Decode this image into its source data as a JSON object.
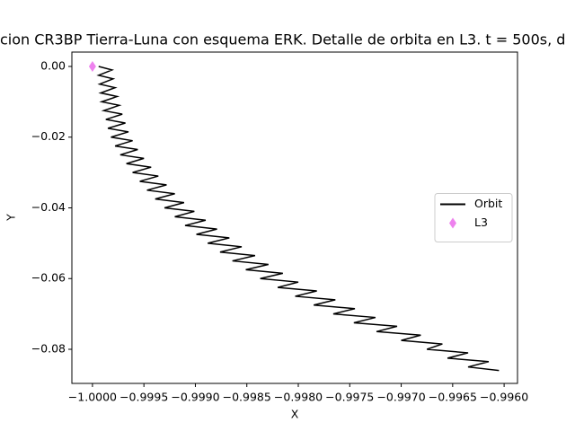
{
  "chart_data": {
    "type": "line",
    "title": "cion CR3BP Tierra-Luna con esquema ERK. Detalle de orbita en L3. t = 500s, d",
    "x_label": "X",
    "y_label": "Y",
    "xlim": [
      -1.0002,
      -0.99587
    ],
    "ylim": [
      -0.08965,
      0.00406
    ],
    "xticks": [
      {
        "value": -1.0,
        "label": "−1.0000"
      },
      {
        "value": -0.9995,
        "label": "−0.9995"
      },
      {
        "value": -0.999,
        "label": "−0.9990"
      },
      {
        "value": -0.9985,
        "label": "−0.9985"
      },
      {
        "value": -0.998,
        "label": "−0.9980"
      },
      {
        "value": -0.9975,
        "label": "−0.9975"
      },
      {
        "value": -0.997,
        "label": "−0.9970"
      },
      {
        "value": -0.9965,
        "label": "−0.9965"
      },
      {
        "value": -0.996,
        "label": "−0.9960"
      }
    ],
    "yticks": [
      {
        "value": 0.0,
        "label": "0.00"
      },
      {
        "value": -0.02,
        "label": "−0.02"
      },
      {
        "value": -0.04,
        "label": "−0.04"
      },
      {
        "value": -0.06,
        "label": "−0.06"
      },
      {
        "value": -0.08,
        "label": "−0.08"
      }
    ],
    "legend": "center right",
    "series": [
      {
        "name": "Orbit",
        "color": "#000000",
        "marker": "none",
        "x": [
          -0.99994,
          -0.99981,
          -0.99994,
          -0.9998,
          -0.99993,
          -0.99978,
          -0.99992,
          -0.99976,
          -0.99991,
          -0.99974,
          -0.99989,
          -0.99971,
          -0.99987,
          -0.99968,
          -0.99985,
          -0.99965,
          -0.99982,
          -0.99961,
          -0.99978,
          -0.99956,
          -0.99973,
          -0.9995,
          -0.99967,
          -0.99943,
          -0.99961,
          -0.99936,
          -0.99954,
          -0.99928,
          -0.99947,
          -0.9992,
          -0.99939,
          -0.99911,
          -0.9993,
          -0.99901,
          -0.9992,
          -0.9989,
          -0.9991,
          -0.99879,
          -0.99899,
          -0.99867,
          -0.99888,
          -0.99855,
          -0.99876,
          -0.99842,
          -0.99864,
          -0.99829,
          -0.99851,
          -0.99815,
          -0.99837,
          -0.998,
          -0.9982,
          -0.99782,
          -0.99803,
          -0.99764,
          -0.99785,
          -0.99745,
          -0.99766,
          -0.99725,
          -0.99746,
          -0.99704,
          -0.99724,
          -0.99681,
          -0.997,
          -0.9966,
          -0.99675,
          -0.99635,
          -0.99655,
          -0.99615,
          -0.99635,
          -0.99605
        ],
        "values": [
          0,
          -0.001,
          -0.0025,
          -0.0035,
          -0.005,
          -0.006,
          -0.0075,
          -0.0085,
          -0.01,
          -0.011,
          -0.0125,
          -0.0135,
          -0.015,
          -0.016,
          -0.0175,
          -0.0185,
          -0.02,
          -0.021,
          -0.0225,
          -0.0235,
          -0.025,
          -0.026,
          -0.0275,
          -0.0285,
          -0.03,
          -0.031,
          -0.0325,
          -0.0335,
          -0.035,
          -0.036,
          -0.0375,
          -0.0385,
          -0.04,
          -0.041,
          -0.0425,
          -0.0435,
          -0.045,
          -0.046,
          -0.0475,
          -0.0485,
          -0.05,
          -0.051,
          -0.0525,
          -0.0535,
          -0.055,
          -0.056,
          -0.0575,
          -0.0585,
          -0.06,
          -0.061,
          -0.0625,
          -0.0635,
          -0.065,
          -0.066,
          -0.0675,
          -0.0685,
          -0.07,
          -0.071,
          -0.0725,
          -0.0735,
          -0.075,
          -0.076,
          -0.0775,
          -0.0785,
          -0.08,
          -0.081,
          -0.0825,
          -0.0835,
          -0.085,
          -0.086
        ]
      },
      {
        "name": "L3",
        "color": "violet",
        "marker": "diamond",
        "x": [
          -1.0
        ],
        "values": [
          0.0
        ]
      }
    ]
  }
}
